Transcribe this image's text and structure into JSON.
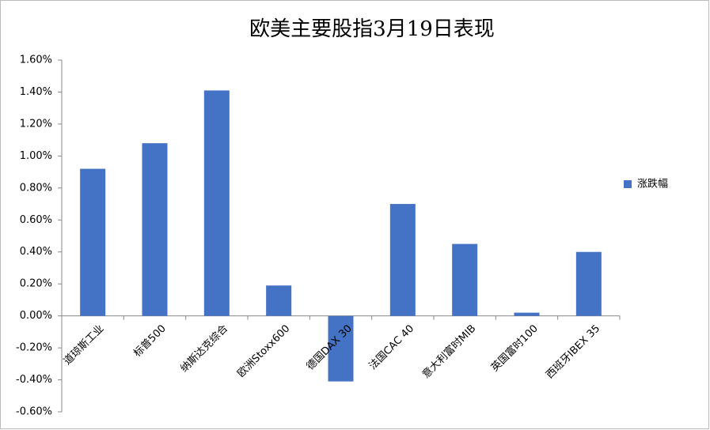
{
  "chart_data": {
    "type": "bar",
    "title": "欧美主要股指3月19日表现",
    "categories": [
      "道琼斯工业",
      "标普500",
      "纳斯达克综合",
      "欧洲Stoxx600",
      "德国DAX 30",
      "法国CAC 40",
      "意大利富时MIB",
      "英国富时100",
      "西班牙IBEX 35"
    ],
    "series": [
      {
        "name": "涨跌幅",
        "color": "#4472c4",
        "values": [
          0.92,
          1.08,
          1.41,
          0.19,
          -0.41,
          0.7,
          0.45,
          0.02,
          0.4
        ]
      }
    ],
    "ylim": [
      -0.6,
      1.6
    ],
    "yticks": [
      {
        "value": -0.6,
        "label": "-0.60%"
      },
      {
        "value": -0.4,
        "label": "-0.40%"
      },
      {
        "value": -0.2,
        "label": "-0.20%"
      },
      {
        "value": 0,
        "label": "0.00%"
      },
      {
        "value": 0.2,
        "label": "0.20%"
      },
      {
        "value": 0.4,
        "label": "0.40%"
      },
      {
        "value": 0.6,
        "label": "0.60%"
      },
      {
        "value": 0.8,
        "label": "0.80%"
      },
      {
        "value": 1.0,
        "label": "1.00%"
      },
      {
        "value": 1.2,
        "label": "1.20%"
      },
      {
        "value": 1.4,
        "label": "1.40%"
      },
      {
        "value": 1.6,
        "label": "1.60%"
      }
    ],
    "grid": false,
    "legend": "right"
  }
}
